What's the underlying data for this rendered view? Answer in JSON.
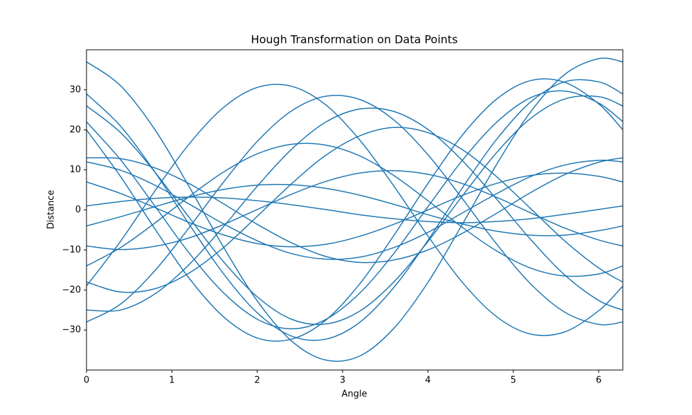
{
  "chart_data": {
    "type": "line",
    "title": "Hough Transformation on Data Points",
    "x_label": "Angle",
    "y_label": "Distance",
    "x": [
      0,
      0.4,
      0.8,
      1.2,
      1.6,
      2.0,
      2.4,
      2.8,
      3.2,
      3.6,
      4.0,
      4.4,
      4.8,
      5.2,
      5.6,
      6.0,
      6.28
    ],
    "xlim": [
      0,
      6.283
    ],
    "ylim": [
      -40,
      40
    ],
    "xticks": [
      0,
      1,
      2,
      3,
      4,
      5,
      6
    ],
    "yticks": [
      {
        "value": -30,
        "label": "−30"
      },
      {
        "value": -20,
        "label": "−20"
      },
      {
        "value": -10,
        "label": "−10"
      },
      0,
      10,
      20,
      30
    ],
    "series": [
      {
        "color": "#1f77b4",
        "values": [
          37,
          31.0,
          20.1,
          5.9,
          -9.1,
          -22.7,
          -32.7,
          -37.5,
          -36.5,
          -29.6,
          -18.1,
          -3.7,
          11.2,
          24.4,
          33.8,
          37.8,
          37.0
        ]
      },
      {
        "color": "#1f77b4",
        "values": [
          29,
          20.9,
          9.5,
          -3.5,
          -15.8,
          -25.7,
          -31.5,
          -32.3,
          -28.1,
          -19.4,
          -7.6,
          5.4,
          17.5,
          26.9,
          32.0,
          32.0,
          29.0
        ]
      },
      {
        "color": "#1f77b4",
        "values": [
          26,
          19.3,
          9.5,
          -1.8,
          -12.8,
          -21.7,
          -27.3,
          -28.5,
          -25.3,
          -18.0,
          -7.9,
          3.4,
          14.2,
          22.8,
          27.7,
          28.3,
          26.0
        ]
      },
      {
        "color": "#1f77b4",
        "values": [
          22,
          12.5,
          1.0,
          -10.7,
          -20.6,
          -27.3,
          -29.7,
          -27.4,
          -20.8,
          -10.9,
          0.8,
          12.3,
          21.8,
          28.0,
          29.7,
          26.7,
          22.1
        ]
      },
      {
        "color": "#1f77b4",
        "values": [
          -19,
          -7.8,
          4.7,
          16.4,
          25.5,
          30.6,
          30.9,
          26.3,
          17.5,
          6.0,
          -6.5,
          -18.0,
          -26.6,
          -31.0,
          -30.5,
          -25.2,
          -19.1
        ]
      },
      {
        "color": "#1f77b4",
        "values": [
          -28,
          -23.5,
          -15.2,
          -4.5,
          6.8,
          17.1,
          24.7,
          28.4,
          27.6,
          22.5,
          13.8,
          2.9,
          -8.4,
          -18.4,
          -25.5,
          -28.6,
          -28.0
        ]
      },
      {
        "color": "#1f77b4",
        "values": [
          12,
          9.9,
          6.2,
          1.5,
          -3.4,
          -7.7,
          -10.9,
          -12.3,
          -11.8,
          -9.4,
          -5.6,
          -0.8,
          4.0,
          8.3,
          11.2,
          12.4,
          12.0
        ]
      },
      {
        "color": "#1f77b4",
        "values": [
          7,
          4.1,
          0.6,
          -3.1,
          -6.2,
          -8.4,
          -9.2,
          -8.6,
          -6.6,
          -3.6,
          0.0,
          3.6,
          6.6,
          8.6,
          9.2,
          8.4,
          7.0
        ]
      },
      {
        "color": "#1f77b4",
        "values": [
          1,
          2.1,
          2.9,
          3.2,
          3.0,
          2.3,
          1.3,
          0.1,
          -1.2,
          -2.2,
          -2.9,
          -3.2,
          -2.9,
          -2.2,
          -1.1,
          0.1,
          1.0
        ]
      },
      {
        "color": "#1f77b4",
        "values": [
          -9,
          -9.9,
          -9.1,
          -7.0,
          -3.7,
          0.1,
          3.9,
          7.1,
          9.2,
          9.8,
          8.9,
          6.6,
          3.2,
          -0.7,
          -4.5,
          -7.5,
          -9.0
        ]
      },
      {
        "color": "#1f77b4",
        "values": [
          -14,
          -9.4,
          -3.3,
          3.3,
          9.4,
          14.0,
          16.4,
          16.2,
          13.5,
          8.6,
          2.3,
          -4.3,
          -10.2,
          -14.5,
          -16.5,
          -16.0,
          -14.0
        ]
      },
      {
        "color": "#1f77b4",
        "values": [
          -25,
          -25.0,
          -21.0,
          -13.7,
          -4.3,
          5.9,
          15.1,
          21.9,
          25.2,
          24.6,
          20.1,
          12.4,
          2.8,
          -7.3,
          -16.2,
          -22.6,
          -25.0
        ]
      },
      {
        "color": "#1f77b4",
        "values": [
          20,
          8.3,
          -4.7,
          -17.0,
          -26.6,
          -32.0,
          -32.3,
          -27.6,
          -18.5,
          -6.4,
          6.6,
          18.6,
          27.6,
          32.3,
          31.9,
          26.5,
          20.1
        ]
      },
      {
        "color": "#1f77b4",
        "values": [
          13,
          12.8,
          10.5,
          6.6,
          1.6,
          -3.6,
          -8.2,
          -11.6,
          -13.1,
          -12.5,
          -10.0,
          -5.9,
          -0.9,
          4.3,
          8.8,
          11.9,
          13.0
        ]
      },
      {
        "color": "#1f77b4",
        "values": [
          -4,
          -1.7,
          0.8,
          3.2,
          5.1,
          6.2,
          6.3,
          5.4,
          3.7,
          1.4,
          -1.2,
          -3.5,
          -5.3,
          -6.3,
          -6.3,
          -5.2,
          -4.0
        ]
      },
      {
        "color": "#1f77b4",
        "values": [
          -18,
          -20.5,
          -19.7,
          -15.8,
          -9.5,
          -1.6,
          6.5,
          13.6,
          18.5,
          20.6,
          19.3,
          15.1,
          8.4,
          0.4,
          -7.7,
          -14.5,
          -18.0
        ]
      }
    ]
  }
}
